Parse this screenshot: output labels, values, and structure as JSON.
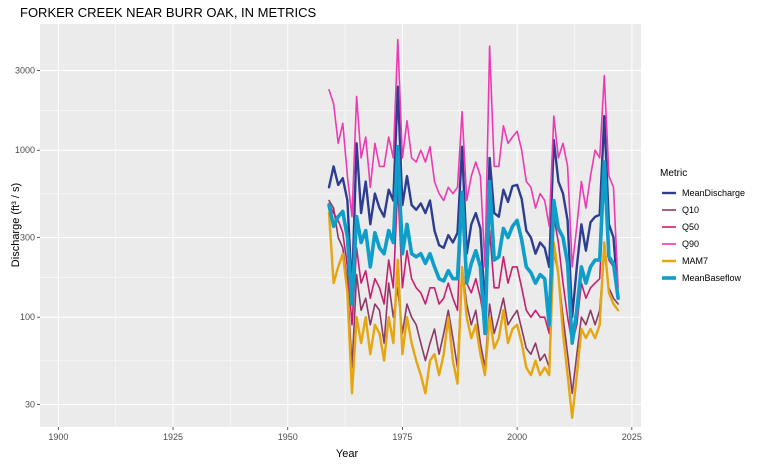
{
  "chart_data": {
    "type": "line",
    "title": "FORKER CREEK NEAR BURR OAK, IN  METRICS",
    "xlabel": "Year",
    "ylabel": "Discharge",
    "ylabel_units": "(ft³ / s)",
    "xlim": [
      1896,
      2027
    ],
    "ylim": [
      22,
      5700
    ],
    "y_scale": "log",
    "grid": true,
    "legend_position": "right",
    "x_ticks": [
      "1900",
      "1925",
      "1950",
      "1975",
      "2000",
      "2025"
    ],
    "y_ticks": [
      "30",
      "100",
      "300",
      "1000",
      "3000"
    ],
    "legend_title": "Metric",
    "x": [
      1959,
      1960,
      1961,
      1962,
      1963,
      1964,
      1965,
      1966,
      1967,
      1968,
      1969,
      1970,
      1971,
      1972,
      1973,
      1974,
      1975,
      1976,
      1977,
      1978,
      1979,
      1980,
      1981,
      1982,
      1983,
      1984,
      1985,
      1986,
      1987,
      1988,
      1989,
      1990,
      1991,
      1992,
      1993,
      1994,
      1995,
      1996,
      1997,
      1998,
      1999,
      2000,
      2001,
      2002,
      2003,
      2004,
      2005,
      2006,
      2007,
      2008,
      2009,
      2010,
      2011,
      2012,
      2013,
      2014,
      2015,
      2016,
      2017,
      2018,
      2019,
      2020,
      2021,
      2022
    ],
    "series": [
      {
        "name": "MeanDischarge",
        "color": "#2e3d8f",
        "width": 2.4,
        "values": [
          600,
          800,
          620,
          680,
          500,
          140,
          1100,
          420,
          650,
          360,
          550,
          450,
          400,
          580,
          500,
          2400,
          470,
          700,
          470,
          440,
          480,
          420,
          500,
          330,
          270,
          260,
          310,
          280,
          320,
          1050,
          240,
          360,
          420,
          340,
          110,
          900,
          420,
          400,
          580,
          490,
          610,
          620,
          510,
          330,
          300,
          240,
          280,
          260,
          200,
          1150,
          650,
          550,
          380,
          100,
          200,
          360,
          250,
          370,
          400,
          410,
          1600,
          360,
          300,
          130
        ]
      },
      {
        "name": "Q10",
        "color": "#8a3b66",
        "width": 1.6,
        "values": [
          500,
          450,
          300,
          260,
          160,
          50,
          180,
          110,
          130,
          90,
          120,
          110,
          70,
          160,
          100,
          150,
          80,
          120,
          100,
          90,
          70,
          55,
          70,
          85,
          60,
          80,
          110,
          75,
          50,
          200,
          120,
          90,
          110,
          70,
          50,
          120,
          80,
          100,
          130,
          90,
          100,
          110,
          85,
          65,
          60,
          70,
          55,
          60,
          50,
          250,
          180,
          100,
          60,
          35,
          60,
          100,
          90,
          110,
          90,
          110,
          250,
          150,
          130,
          120
        ]
      },
      {
        "name": "Q50",
        "color": "#c71f6f",
        "width": 1.6,
        "values": [
          480,
          420,
          380,
          320,
          200,
          90,
          260,
          160,
          190,
          130,
          170,
          150,
          120,
          220,
          150,
          620,
          150,
          250,
          170,
          150,
          140,
          120,
          150,
          150,
          120,
          130,
          160,
          130,
          110,
          480,
          160,
          140,
          170,
          130,
          90,
          330,
          150,
          150,
          230,
          160,
          200,
          200,
          150,
          110,
          100,
          110,
          100,
          100,
          80,
          400,
          280,
          160,
          100,
          70,
          90,
          160,
          130,
          150,
          160,
          170,
          650,
          220,
          200,
          130
        ]
      },
      {
        "name": "Q90",
        "color": "#ee3ab2",
        "width": 1.6,
        "values": [
          2300,
          1900,
          1100,
          1450,
          700,
          400,
          2100,
          900,
          1200,
          600,
          1100,
          800,
          800,
          1200,
          900,
          4600,
          900,
          1500,
          900,
          850,
          1000,
          850,
          1050,
          650,
          550,
          500,
          600,
          550,
          600,
          1700,
          500,
          700,
          850,
          700,
          200,
          4200,
          800,
          800,
          1400,
          1100,
          1200,
          1300,
          1000,
          650,
          600,
          450,
          550,
          500,
          350,
          1600,
          900,
          1100,
          800,
          200,
          350,
          650,
          450,
          700,
          1000,
          900,
          2800,
          700,
          600,
          150
        ]
      },
      {
        "name": "MAM7",
        "color": "#e6a60f",
        "width": 2.4,
        "values": [
          420,
          160,
          200,
          240,
          140,
          35,
          100,
          70,
          100,
          60,
          90,
          80,
          55,
          100,
          70,
          220,
          60,
          100,
          70,
          55,
          45,
          35,
          55,
          60,
          45,
          60,
          100,
          55,
          40,
          200,
          100,
          75,
          90,
          60,
          45,
          100,
          65,
          75,
          110,
          70,
          85,
          90,
          70,
          50,
          45,
          55,
          45,
          50,
          45,
          280,
          180,
          80,
          45,
          25,
          45,
          85,
          75,
          85,
          75,
          90,
          280,
          140,
          120,
          110
        ]
      },
      {
        "name": "MeanBaseflow",
        "color": "#0f9ec9",
        "width": 3.6,
        "values": [
          470,
          350,
          400,
          430,
          300,
          120,
          400,
          280,
          330,
          200,
          320,
          260,
          240,
          330,
          280,
          1050,
          240,
          360,
          240,
          230,
          240,
          210,
          240,
          200,
          170,
          165,
          190,
          170,
          170,
          560,
          160,
          210,
          250,
          200,
          80,
          650,
          220,
          230,
          340,
          300,
          350,
          380,
          290,
          200,
          185,
          160,
          180,
          170,
          90,
          500,
          340,
          300,
          210,
          70,
          110,
          200,
          160,
          200,
          220,
          220,
          850,
          230,
          210,
          130
        ]
      }
    ]
  }
}
